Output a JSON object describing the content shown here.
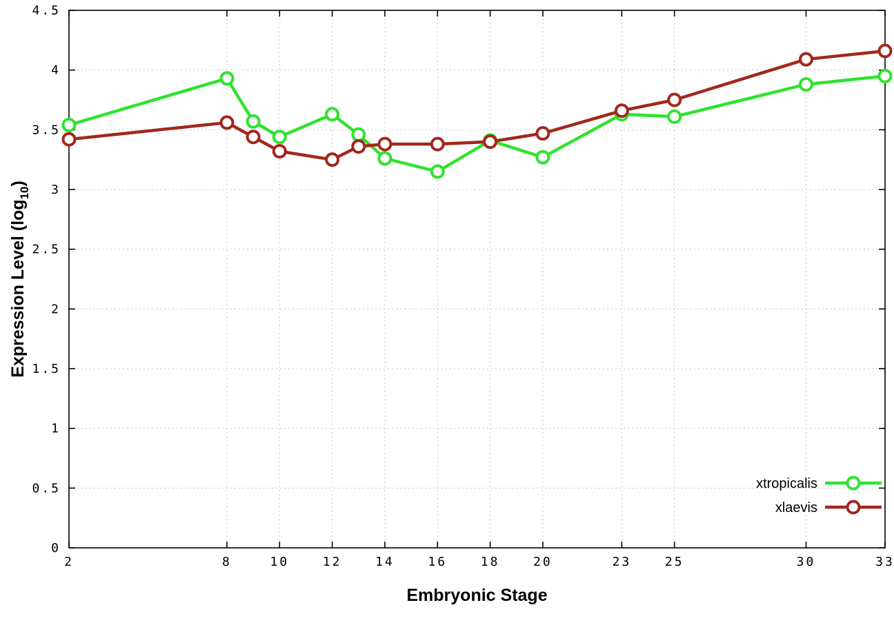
{
  "page": {
    "background": "#ffffff"
  },
  "chart_data": {
    "type": "line",
    "title": "",
    "xlabel": "Embryonic Stage",
    "ylabel": "Expression Level (log10)",
    "ylabel_main": "Expression Level (log",
    "ylabel_sub": "10",
    "ylabel_close": ")",
    "xlim": [
      2,
      33
    ],
    "ylim": [
      0,
      4.5
    ],
    "xticks": [
      2,
      8,
      10,
      12,
      14,
      16,
      18,
      20,
      23,
      25,
      30,
      33
    ],
    "yticks": [
      0,
      0.5,
      1,
      1.5,
      2,
      2.5,
      3,
      3.5,
      4,
      4.5
    ],
    "ytick_labels": [
      "0",
      "0.5",
      "1",
      "1.5",
      "2",
      "2.5",
      "3",
      "3.5",
      "4",
      "4.5"
    ],
    "grid": true,
    "grid_color": "#c8c8c8",
    "border_color": "#000000",
    "legend_position": "bottom-right",
    "marker": "circle-open",
    "x": [
      2,
      8,
      9,
      10,
      12,
      13,
      14,
      16,
      18,
      20,
      23,
      25,
      30,
      33
    ],
    "series": [
      {
        "name": "xtropicalis",
        "color": "#2ee32e",
        "values": [
          3.54,
          3.93,
          3.57,
          3.44,
          3.63,
          3.46,
          3.26,
          3.15,
          3.41,
          3.27,
          3.63,
          3.61,
          3.88,
          3.95
        ]
      },
      {
        "name": "xlaevis",
        "color": "#a2271d",
        "values": [
          3.42,
          3.56,
          3.44,
          3.32,
          3.25,
          3.36,
          3.38,
          3.38,
          3.4,
          3.47,
          3.66,
          3.75,
          4.09,
          4.16
        ]
      }
    ]
  }
}
